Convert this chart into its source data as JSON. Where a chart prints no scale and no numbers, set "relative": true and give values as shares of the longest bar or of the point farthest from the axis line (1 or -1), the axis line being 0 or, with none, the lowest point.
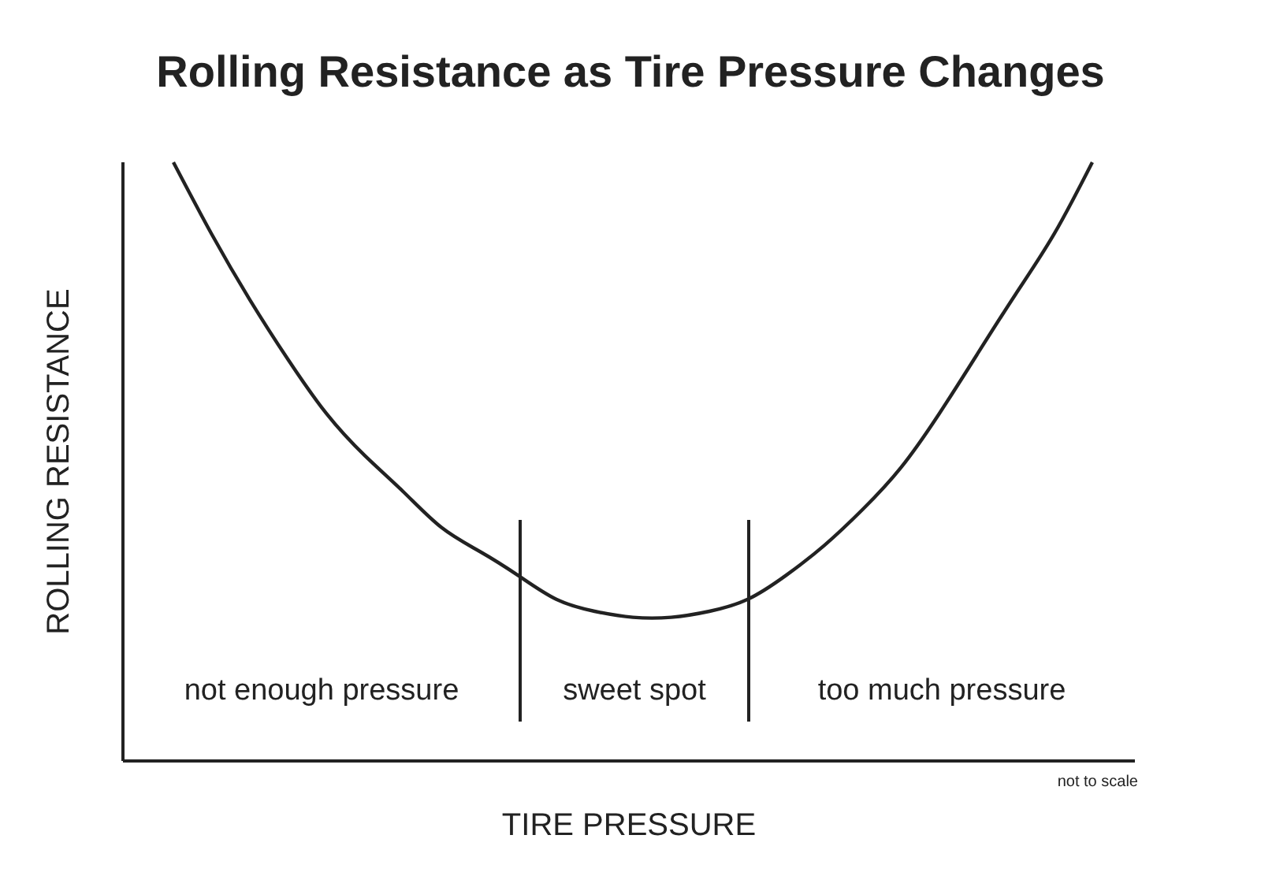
{
  "chart_data": {
    "type": "line",
    "title": "Rolling Resistance as Tire Pressure Changes",
    "xlabel": "TIRE PRESSURE",
    "ylabel": "ROLLING RESISTANCE",
    "relative": true,
    "categories": [
      null,
      null,
      null,
      null,
      null,
      null,
      null,
      null,
      null,
      null,
      null,
      null,
      null,
      null,
      null,
      null,
      null,
      null,
      null,
      null,
      null,
      null,
      null,
      null,
      null
    ],
    "series": [
      {
        "color": "#222222",
        "values": [
          1.0,
          0.88,
          0.77,
          0.67,
          0.58,
          0.51,
          0.45,
          0.39,
          0.35,
          0.31,
          0.27,
          0.25,
          0.24,
          0.24,
          0.25,
          0.27,
          0.31,
          0.36,
          0.42,
          0.49,
          0.58,
          0.68,
          0.78,
          0.88,
          1.0
        ]
      }
    ],
    "annotations": [
      "not enough pressure",
      "sweet spot",
      "too much pressure",
      "not to scale"
    ],
    "grid": false,
    "legend": false,
    "marker": "none",
    "line_style": "solid"
  }
}
